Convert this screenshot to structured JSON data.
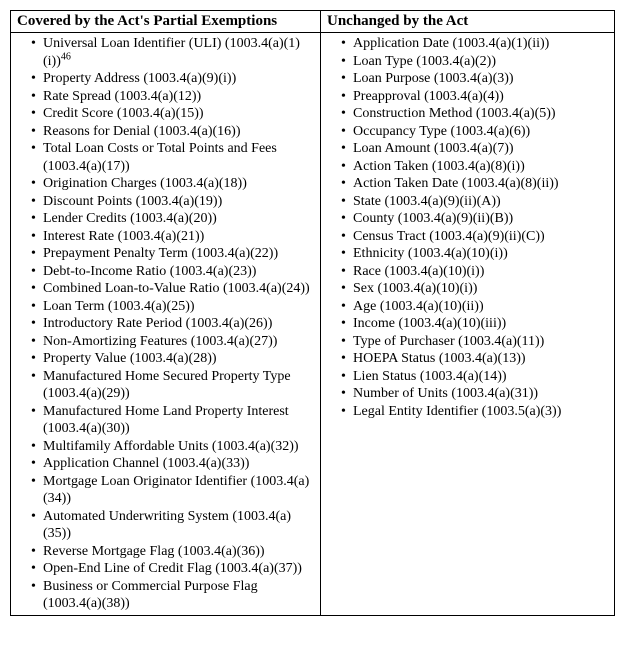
{
  "table": {
    "header_left": "Covered by the Act's Partial Exemptions",
    "header_right": "Unchanged by the Act",
    "footnote_mark": "46",
    "left_items": [
      {
        "label": "Universal Loan Identifier (ULI) (1003.4(a)(1)(i))",
        "has_footnote": true
      },
      {
        "label": "Property Address (1003.4(a)(9)(i))"
      },
      {
        "label": "Rate Spread (1003.4(a)(12))"
      },
      {
        "label": "Credit Score (1003.4(a)(15))"
      },
      {
        "label": "Reasons for Denial (1003.4(a)(16))"
      },
      {
        "label": "Total Loan Costs or Total Points and Fees (1003.4(a)(17))"
      },
      {
        "label": "Origination Charges (1003.4(a)(18))"
      },
      {
        "label": "Discount Points (1003.4(a)(19))"
      },
      {
        "label": "Lender Credits (1003.4(a)(20))"
      },
      {
        "label": "Interest Rate (1003.4(a)(21))"
      },
      {
        "label": "Prepayment Penalty Term (1003.4(a)(22))"
      },
      {
        "label": "Debt-to-Income Ratio (1003.4(a)(23))"
      },
      {
        "label": "Combined Loan-to-Value Ratio (1003.4(a)(24))"
      },
      {
        "label": "Loan Term (1003.4(a)(25))"
      },
      {
        "label": "Introductory Rate Period (1003.4(a)(26))"
      },
      {
        "label": "Non-Amortizing Features (1003.4(a)(27))"
      },
      {
        "label": "Property Value (1003.4(a)(28))"
      },
      {
        "label": "Manufactured Home Secured Property Type (1003.4(a)(29))"
      },
      {
        "label": "Manufactured Home Land Property Interest (1003.4(a)(30))"
      },
      {
        "label": "Multifamily Affordable Units (1003.4(a)(32))"
      },
      {
        "label": "Application Channel (1003.4(a)(33))"
      },
      {
        "label": "Mortgage Loan Originator Identifier (1003.4(a)(34))"
      },
      {
        "label": "Automated Underwriting System (1003.4(a)(35))"
      },
      {
        "label": "Reverse Mortgage Flag (1003.4(a)(36))"
      },
      {
        "label": "Open-End Line of Credit Flag (1003.4(a)(37))"
      },
      {
        "label": "Business or Commercial Purpose Flag (1003.4(a)(38))"
      }
    ],
    "right_items": [
      {
        "label": "Application Date (1003.4(a)(1)(ii))"
      },
      {
        "label": "Loan Type (1003.4(a)(2))"
      },
      {
        "label": "Loan Purpose (1003.4(a)(3))"
      },
      {
        "label": "Preapproval (1003.4(a)(4))"
      },
      {
        "label": "Construction Method (1003.4(a)(5))"
      },
      {
        "label": "Occupancy Type (1003.4(a)(6))"
      },
      {
        "label": "Loan Amount (1003.4(a)(7))"
      },
      {
        "label": "Action Taken (1003.4(a)(8)(i))"
      },
      {
        "label": "Action Taken Date (1003.4(a)(8)(ii))"
      },
      {
        "label": "State (1003.4(a)(9)(ii)(A))"
      },
      {
        "label": "County (1003.4(a)(9)(ii)(B))"
      },
      {
        "label": "Census Tract (1003.4(a)(9)(ii)(C))"
      },
      {
        "label": "Ethnicity (1003.4(a)(10)(i))"
      },
      {
        "label": "Race (1003.4(a)(10)(i))"
      },
      {
        "label": "Sex (1003.4(a)(10)(i))"
      },
      {
        "label": "Age (1003.4(a)(10)(ii))"
      },
      {
        "label": "Income (1003.4(a)(10)(iii))"
      },
      {
        "label": "Type of Purchaser (1003.4(a)(11))"
      },
      {
        "label": "HOEPA Status (1003.4(a)(13))"
      },
      {
        "label": "Lien Status (1003.4(a)(14))"
      },
      {
        "label": "Number of Units (1003.4(a)(31))"
      },
      {
        "label": "Legal Entity Identifier (1003.5(a)(3))"
      }
    ]
  }
}
